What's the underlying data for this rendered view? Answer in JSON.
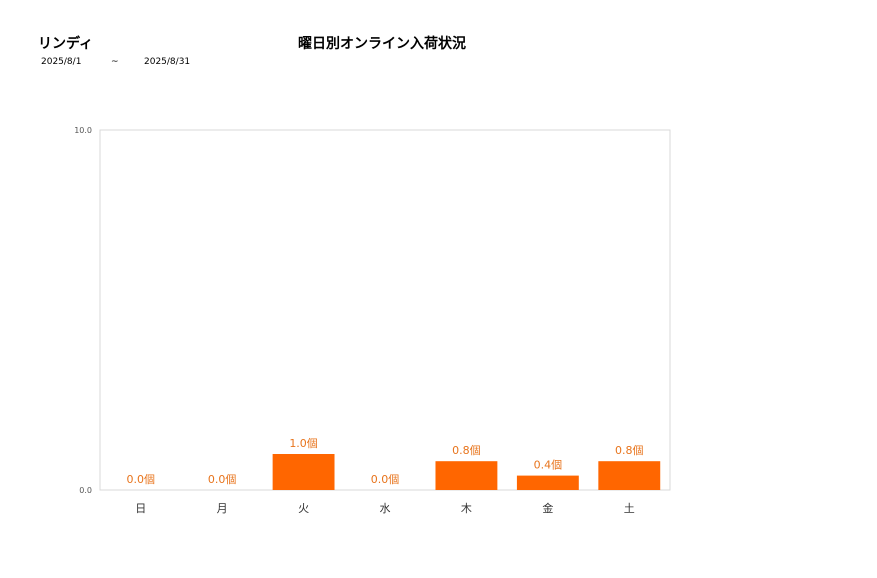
{
  "header": {
    "brand": "リンディ",
    "title": "曜日別オンライン入荷状況",
    "date_from": "2025/8/1",
    "date_sep": "~",
    "date_to": "2025/8/31"
  },
  "chart_data": {
    "type": "bar",
    "title": "曜日別オンライン入荷状況",
    "xlabel": "",
    "ylabel": "",
    "categories": [
      "日",
      "月",
      "火",
      "水",
      "木",
      "金",
      "土"
    ],
    "values": [
      0.0,
      0.0,
      1.0,
      0.0,
      0.8,
      0.4,
      0.8
    ],
    "data_labels": [
      "0.0個",
      "0.0個",
      "1.0個",
      "0.0個",
      "0.8個",
      "0.4個",
      "0.8個"
    ],
    "ylim": [
      0,
      10
    ],
    "yticks": [
      "0.0",
      "10.0"
    ],
    "bar_color": "#ff6600",
    "label_color": "#e8741c",
    "grid": false,
    "legend": "none"
  }
}
